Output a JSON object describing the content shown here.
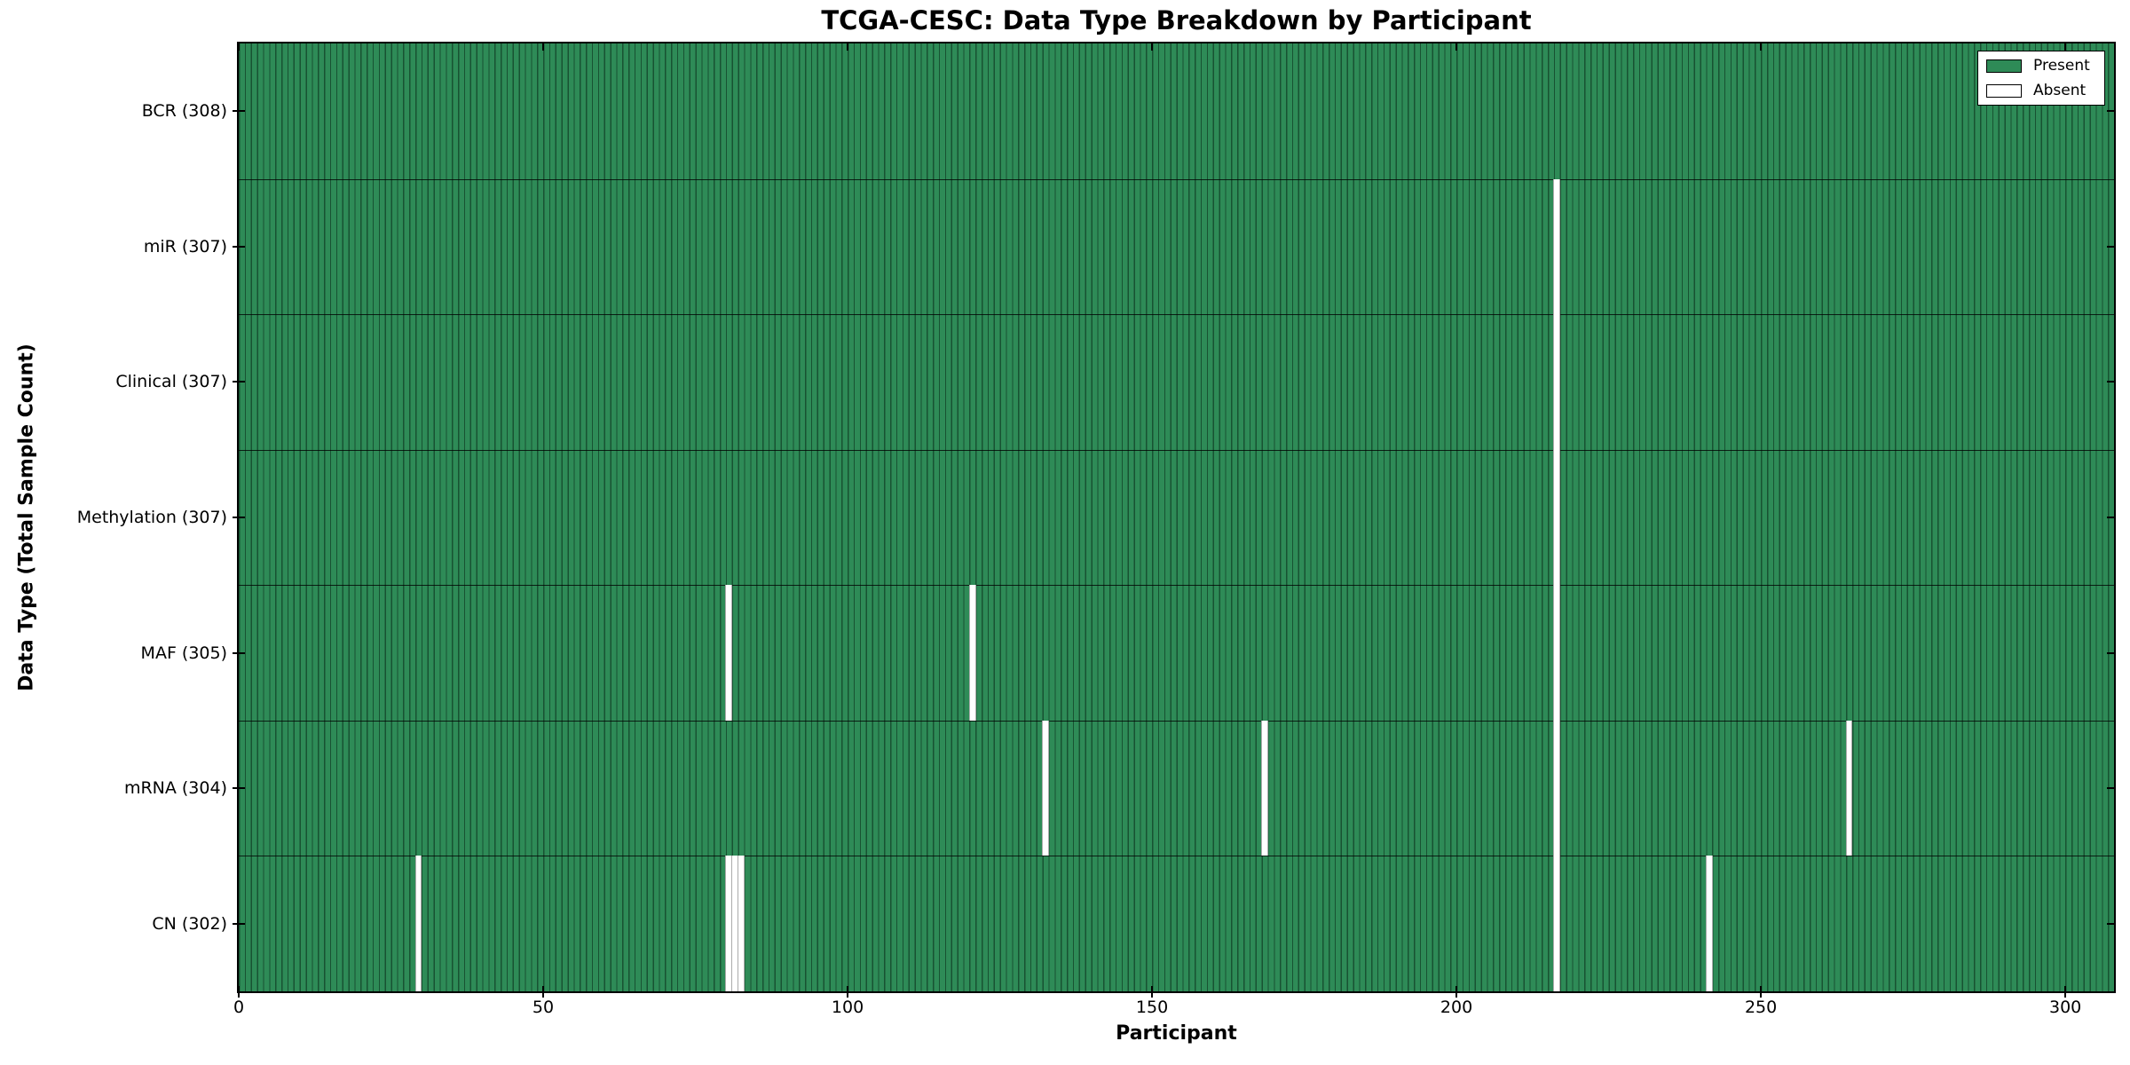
{
  "figure": {
    "title": "TCGA-CESC: Data Type Breakdown by Participant",
    "xlabel": "Participant",
    "ylabel": "Data Type (Total Sample Count)"
  },
  "legend": {
    "items": [
      {
        "label": "Present",
        "color": "#2e8b57"
      },
      {
        "label": "Absent",
        "color": "#ffffff"
      }
    ],
    "position": "upper right"
  },
  "colors": {
    "present": "#2e8b57",
    "absent": "#ffffff",
    "edge": "#000000",
    "background": "#ffffff"
  },
  "chart_data": {
    "type": "heatmap",
    "title": "TCGA-CESC: Data Type Breakdown by Participant",
    "xlabel": "Participant",
    "ylabel": "Data Type (Total Sample Count)",
    "x_axis": {
      "min": 0,
      "max": 308,
      "ticks": [
        0,
        50,
        100,
        150,
        200,
        250,
        300
      ]
    },
    "n_participants": 308,
    "cell_states": [
      "Present",
      "Absent"
    ],
    "grid": false,
    "legend_position": "upper right",
    "rows": [
      {
        "label": "BCR (308)",
        "data_type": "BCR",
        "total_samples": 308,
        "absent_participants": []
      },
      {
        "label": "miR (307)",
        "data_type": "miR",
        "total_samples": 307,
        "absent_participants": [
          216
        ]
      },
      {
        "label": "Clinical (307)",
        "data_type": "Clinical",
        "total_samples": 307,
        "absent_participants": [
          216
        ]
      },
      {
        "label": "Methylation (307)",
        "data_type": "Methylation",
        "total_samples": 307,
        "absent_participants": [
          216
        ]
      },
      {
        "label": "MAF (305)",
        "data_type": "MAF",
        "total_samples": 305,
        "absent_participants": [
          80,
          120,
          216
        ]
      },
      {
        "label": "mRNA (304)",
        "data_type": "mRNA",
        "total_samples": 304,
        "absent_participants": [
          132,
          168,
          216,
          264
        ]
      },
      {
        "label": "CN (302)",
        "data_type": "CN",
        "total_samples": 302,
        "absent_participants": [
          29,
          80,
          81,
          82,
          216,
          241
        ]
      }
    ]
  }
}
